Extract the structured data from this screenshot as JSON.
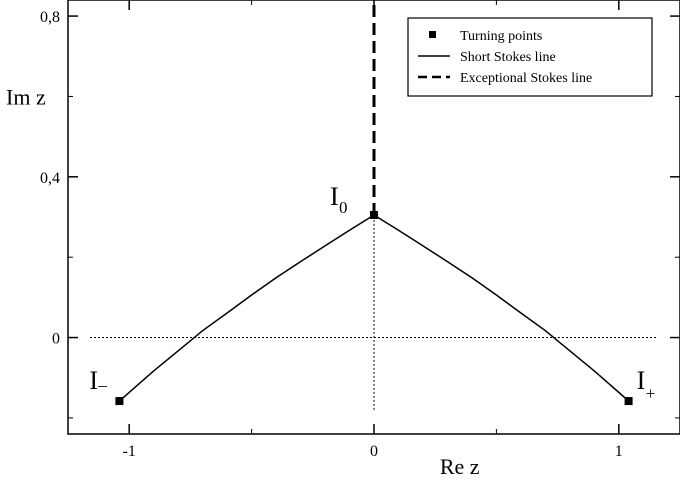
{
  "chart_data": {
    "type": "line",
    "xlabel": "Re z",
    "ylabel": "Im z",
    "xlim": [
      -1.25,
      1.25
    ],
    "ylim": [
      -0.24,
      0.84
    ],
    "x_ticks": [
      {
        "value": -1,
        "label": "-1"
      },
      {
        "value": 0,
        "label": "0"
      },
      {
        "value": 1,
        "label": "1"
      }
    ],
    "y_ticks": [
      {
        "value": 0,
        "label": "0"
      },
      {
        "value": 0.4,
        "label": "0,4"
      },
      {
        "value": 0.8,
        "label": "0,8"
      }
    ],
    "x_minor_step": 0.5,
    "y_minor_step": 0.2,
    "grid": false,
    "legend_position": "top-right",
    "legend": [
      {
        "label": "Turning points",
        "style": "square-marker"
      },
      {
        "label": "Short Stokes line",
        "style": "solid"
      },
      {
        "label": "Exceptional Stokes line",
        "style": "dashed"
      }
    ],
    "turning_points": [
      {
        "label": "I",
        "subscript": "_",
        "label_pos": "left",
        "x": -1.04,
        "y": -0.158
      },
      {
        "label": "I",
        "subscript": "0",
        "label_pos": "above-left",
        "x": 0.0,
        "y": 0.305
      },
      {
        "label": "I",
        "subscript": "+",
        "label_pos": "right",
        "x": 1.04,
        "y": -0.158
      }
    ],
    "series": [
      {
        "style": "solid",
        "x": [
          -1.04,
          -0.9,
          -0.8,
          -0.7,
          -0.6,
          -0.5,
          -0.4,
          -0.3,
          -0.2,
          -0.1,
          0.0
        ],
        "y": [
          -0.158,
          -0.083,
          -0.033,
          0.017,
          0.061,
          0.106,
          0.149,
          0.189,
          0.228,
          0.267,
          0.305
        ]
      },
      {
        "style": "solid",
        "x": [
          0.0,
          0.1,
          0.2,
          0.3,
          0.4,
          0.5,
          0.6,
          0.7,
          0.8,
          0.9,
          1.04
        ],
        "y": [
          0.305,
          0.267,
          0.228,
          0.189,
          0.149,
          0.106,
          0.061,
          0.017,
          -0.033,
          -0.083,
          -0.158
        ]
      },
      {
        "style": "dashed",
        "x": [
          0.0,
          0.0
        ],
        "y": [
          0.305,
          0.84
        ]
      }
    ],
    "reference_lines": [
      {
        "orientation": "horizontal",
        "value": 0,
        "from": -1.16,
        "to": 1.16,
        "style": "dotted"
      },
      {
        "orientation": "vertical",
        "value": 0,
        "from": -0.18,
        "to": 0.305,
        "style": "dotted"
      }
    ]
  }
}
